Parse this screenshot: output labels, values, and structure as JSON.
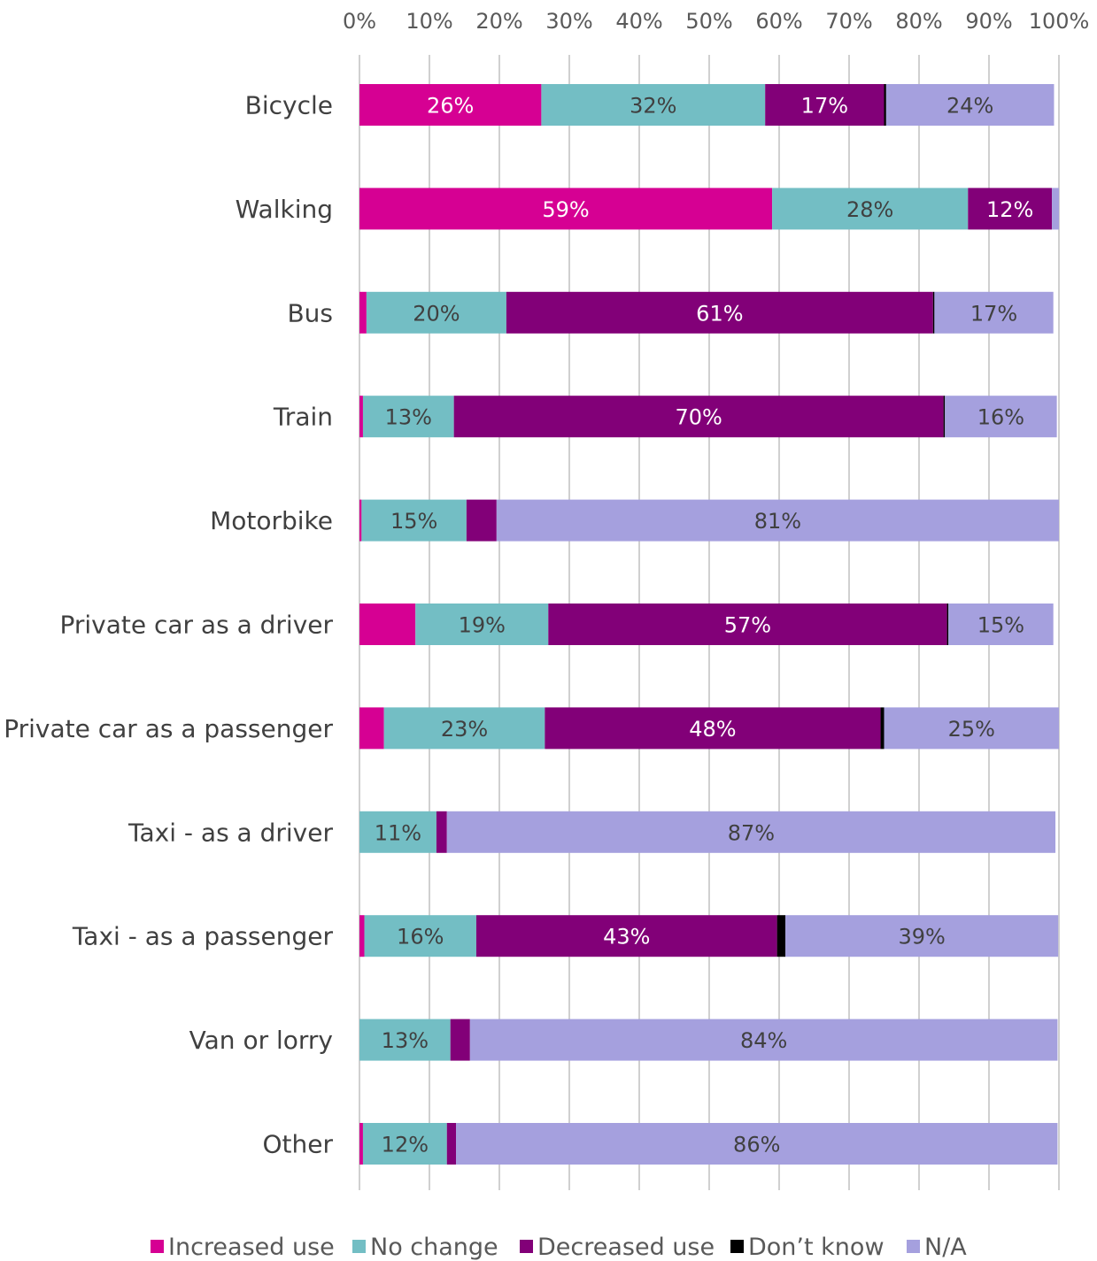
{
  "chart_data": {
    "type": "bar",
    "orientation": "horizontal",
    "stacked": true,
    "percent_stacked": true,
    "xlim": [
      0,
      100
    ],
    "x_ticks": [
      "0%",
      "10%",
      "20%",
      "30%",
      "40%",
      "50%",
      "60%",
      "70%",
      "80%",
      "90%",
      "100%"
    ],
    "x_axis_position": "top",
    "grid": true,
    "legend_position": "bottom",
    "categories": [
      "Bicycle",
      "Walking",
      "Bus",
      "Train",
      "Motorbike",
      "Private car as a driver",
      "Private car as a passenger",
      "Taxi - as a driver",
      "Taxi - as a passenger",
      "Van or lorry",
      "Other"
    ],
    "series": [
      {
        "name": "Increased use",
        "color": "#D60093",
        "values": [
          26,
          59,
          1,
          0.5,
          0.3,
          8,
          3.5,
          0,
          0.7,
          0,
          0.5
        ],
        "labels": [
          "26%",
          "59%",
          "",
          "",
          "",
          "",
          "",
          "",
          "",
          "",
          ""
        ]
      },
      {
        "name": "No change",
        "color": "#73BEC4",
        "values": [
          32,
          28,
          20,
          13,
          15,
          19,
          23,
          11,
          16,
          13,
          12
        ],
        "labels": [
          "32%",
          "28%",
          "20%",
          "13%",
          "15%",
          "19%",
          "23%",
          "11%",
          "16%",
          "13%",
          "12%"
        ]
      },
      {
        "name": "Decreased use",
        "color": "#820078",
        "values": [
          17,
          12,
          61,
          70,
          4.3,
          57,
          48,
          1.5,
          43,
          2.8,
          1.3
        ],
        "labels": [
          "17%",
          "12%",
          "61%",
          "70%",
          "",
          "57%",
          "48%",
          "",
          "43%",
          "",
          ""
        ]
      },
      {
        "name": "Don’t know",
        "color": "#000000",
        "values": [
          0.3,
          0,
          0.2,
          0.2,
          0,
          0.2,
          0.5,
          0,
          1.2,
          0,
          0
        ],
        "labels": [
          "",
          "",
          "",
          "",
          "",
          "",
          "",
          "",
          "",
          "",
          ""
        ]
      },
      {
        "name": "N/A",
        "color": "#A5A0DE",
        "values": [
          24,
          1.4,
          17,
          16,
          81,
          15,
          25,
          87,
          39,
          84,
          86
        ],
        "labels": [
          "24%",
          "",
          "17%",
          "16%",
          "81%",
          "15%",
          "25%",
          "87%",
          "39%",
          "84%",
          "86%"
        ]
      }
    ],
    "label_colors": {
      "Increased use": "#FFFFFF",
      "No change": "#404040",
      "Decreased use": "#FFFFFF",
      "Don’t know": "#FFFFFF",
      "N/A": "#404040"
    }
  }
}
